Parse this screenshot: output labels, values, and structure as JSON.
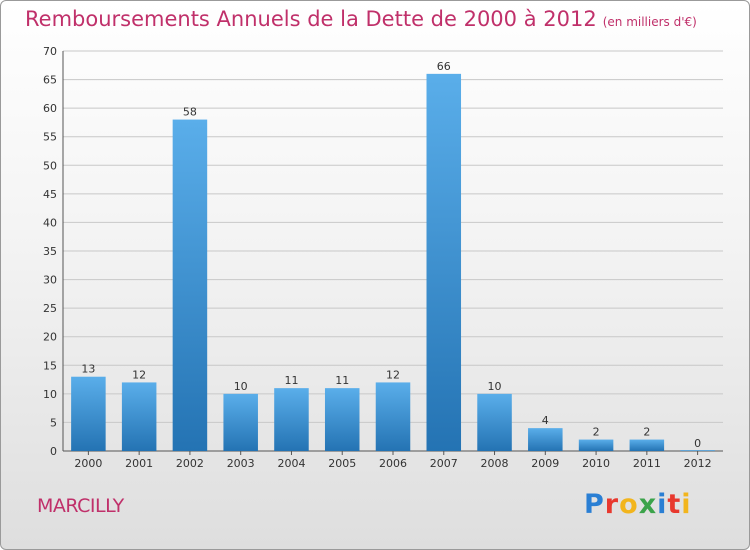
{
  "title": "Remboursements Annuels de la Dette de 2000 à 2012",
  "subtitle": "(en milliers d'€)",
  "commune": "MARCILLY",
  "brand": {
    "letters": [
      {
        "char": "P",
        "color": "#2a7fd4"
      },
      {
        "char": "r",
        "color": "#e8382e"
      },
      {
        "char": "o",
        "color": "#f2b51d"
      },
      {
        "char": "x",
        "color": "#3ba34a"
      },
      {
        "char": "i",
        "color": "#2a7fd4"
      },
      {
        "char": "t",
        "color": "#e8382e"
      },
      {
        "char": "i",
        "color": "#f2b51d"
      }
    ]
  },
  "colors": {
    "accent": "#c0306a",
    "bar_light": "#5aaeea",
    "bar_dark": "#2473b3",
    "grid": "#c8c8c8"
  },
  "chart_data": {
    "type": "bar",
    "categories": [
      "2000",
      "2001",
      "2002",
      "2003",
      "2004",
      "2005",
      "2006",
      "2007",
      "2008",
      "2009",
      "2010",
      "2011",
      "2012"
    ],
    "values": [
      13,
      12,
      58,
      10,
      11,
      11,
      12,
      66,
      10,
      4,
      2,
      2,
      0
    ],
    "ylim": [
      0,
      70
    ],
    "yticks": [
      0,
      5,
      10,
      15,
      20,
      25,
      30,
      35,
      40,
      45,
      50,
      55,
      60,
      65,
      70
    ],
    "grid": true,
    "data_labels": true
  }
}
